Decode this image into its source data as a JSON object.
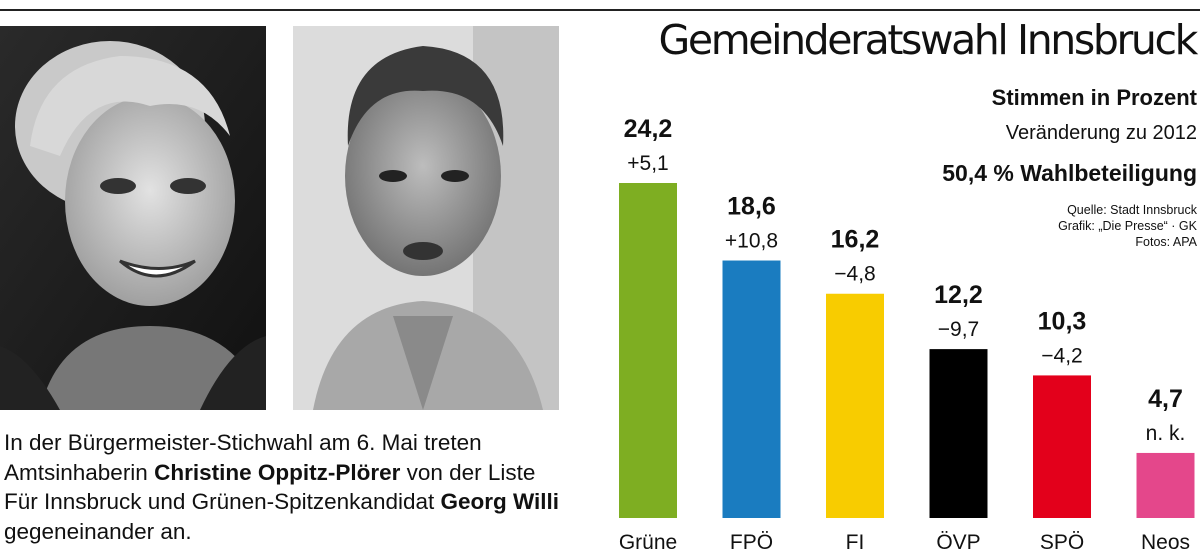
{
  "caption": {
    "part1": "In der Bürgermeister-Stichwahl am 6. Mai treten Amtsinhaberin ",
    "name1": "Christine Oppitz-Plörer",
    "part2": " von der Liste Für Innsbruck und Grünen-Spitzenkandidat ",
    "name2": "Georg Willi",
    "part3": " gegeneinander an."
  },
  "colors": {
    "Grüne": "#7eae22",
    "FPÖ": "#1a7cc0",
    "FI": "#f8cc00",
    "ÖVP": "#000000",
    "SPÖ": "#e3001b",
    "Neos": "#e4478b"
  },
  "chart_data": {
    "type": "bar",
    "title": "Gemeinderatswahl Innsbruck",
    "subtitle": "Stimmen in Prozent",
    "change_label": "Veränderung zu 2012",
    "turnout": "50,4 % Wahlbeteiligung",
    "source": [
      "Quelle: Stadt Innsbruck",
      "Grafik: „Die Presse“ · GK",
      "Fotos: APA"
    ],
    "categories": [
      "Grüne",
      "FPÖ",
      "FI",
      "ÖVP",
      "SPÖ",
      "Neos"
    ],
    "values": [
      24.2,
      18.6,
      16.2,
      12.2,
      10.3,
      4.7
    ],
    "value_labels": [
      "24,2",
      "18,6",
      "16,2",
      "12,2",
      "10,3",
      "4,7"
    ],
    "change_labels": [
      "+5,1",
      "+10,8",
      "−4,8",
      "−9,7",
      "−4,2",
      "n. k."
    ],
    "ylim": [
      0,
      24.2
    ]
  }
}
